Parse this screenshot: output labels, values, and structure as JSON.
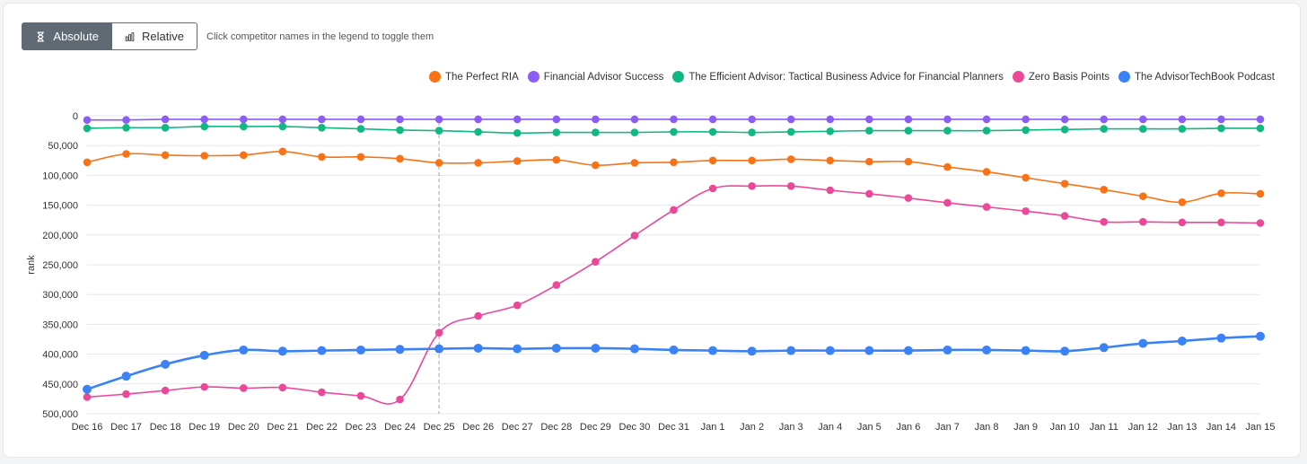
{
  "toolbar": {
    "absolute_label": "Absolute",
    "relative_label": "Relative",
    "hint": "Click competitor names in the legend to toggle them"
  },
  "icons": {
    "absolute": "hourglass-icon",
    "relative": "bar-chart-icon"
  },
  "colors": {
    "active_button": "#5f6a75",
    "grid": "#e5e7eb"
  },
  "chart_data": {
    "type": "line",
    "ylabel": "rank",
    "y_reversed": true,
    "ylim": [
      0,
      500000
    ],
    "yticks": [
      0,
      50000,
      100000,
      150000,
      200000,
      250000,
      300000,
      350000,
      400000,
      450000,
      500000
    ],
    "ytick_labels": [
      "0",
      "50,000",
      "100,000",
      "150,000",
      "200,000",
      "250,000",
      "300,000",
      "350,000",
      "400,000",
      "450,000",
      "500,000"
    ],
    "x": [
      "Dec 16",
      "Dec 17",
      "Dec 18",
      "Dec 19",
      "Dec 20",
      "Dec 21",
      "Dec 22",
      "Dec 23",
      "Dec 24",
      "Dec 25",
      "Dec 26",
      "Dec 27",
      "Dec 28",
      "Dec 29",
      "Dec 30",
      "Dec 31",
      "Jan 1",
      "Jan 2",
      "Jan 3",
      "Jan 4",
      "Jan 5",
      "Jan 6",
      "Jan 7",
      "Jan 8",
      "Jan 9",
      "Jan 10",
      "Jan 11",
      "Jan 12",
      "Jan 13",
      "Jan 14",
      "Jan 15"
    ],
    "marker_x": "Dec 25",
    "legend_position": "top-right",
    "series": [
      {
        "name": "The Perfect RIA",
        "color": "#f97316",
        "values": [
          78000,
          64000,
          66000,
          67000,
          66000,
          60000,
          69000,
          69000,
          72000,
          79000,
          79000,
          76000,
          74000,
          83000,
          79000,
          78000,
          75000,
          75000,
          73000,
          75000,
          77000,
          77000,
          86000,
          94000,
          104000,
          114000,
          124000,
          135000,
          145000,
          130000,
          131000
        ]
      },
      {
        "name": "Financial Advisor Success",
        "color": "#8b5cf6",
        "values": [
          7000,
          7000,
          6000,
          6000,
          6000,
          6000,
          6000,
          6000,
          6000,
          6000,
          6000,
          6000,
          6000,
          6000,
          6000,
          6000,
          6000,
          6000,
          6000,
          6000,
          6000,
          6000,
          6000,
          6000,
          6000,
          6000,
          6000,
          6000,
          6000,
          6000,
          6000
        ]
      },
      {
        "name": "The Efficient Advisor: Tactical Business Advice for Financial Planners",
        "color": "#10b981",
        "values": [
          21000,
          20000,
          20000,
          18000,
          18000,
          18000,
          20000,
          22000,
          24000,
          25000,
          27000,
          29000,
          28000,
          28000,
          28000,
          27000,
          27000,
          28000,
          27000,
          26000,
          25000,
          25000,
          25000,
          25000,
          24000,
          23000,
          22000,
          22000,
          22000,
          21000,
          21000
        ]
      },
      {
        "name": "Zero Basis Points",
        "color": "#ec4899",
        "values": [
          472000,
          467000,
          461000,
          455000,
          457000,
          456000,
          464000,
          470000,
          476000,
          364000,
          336000,
          318000,
          284000,
          245000,
          201000,
          158000,
          122000,
          118000,
          118000,
          125000,
          131000,
          138000,
          146000,
          153000,
          160000,
          168000,
          178000,
          178000,
          179000,
          179000,
          180000
        ]
      },
      {
        "name": "The AdvisorTechBook Podcast",
        "color": "#3b82f6",
        "values": [
          459000,
          437000,
          417000,
          402000,
          393000,
          395000,
          394000,
          393000,
          392000,
          391000,
          390000,
          391000,
          390000,
          390000,
          391000,
          393000,
          394000,
          395000,
          394000,
          394000,
          394000,
          394000,
          393000,
          393000,
          394000,
          395000,
          389000,
          382000,
          378000,
          373000,
          370000
        ]
      }
    ]
  }
}
